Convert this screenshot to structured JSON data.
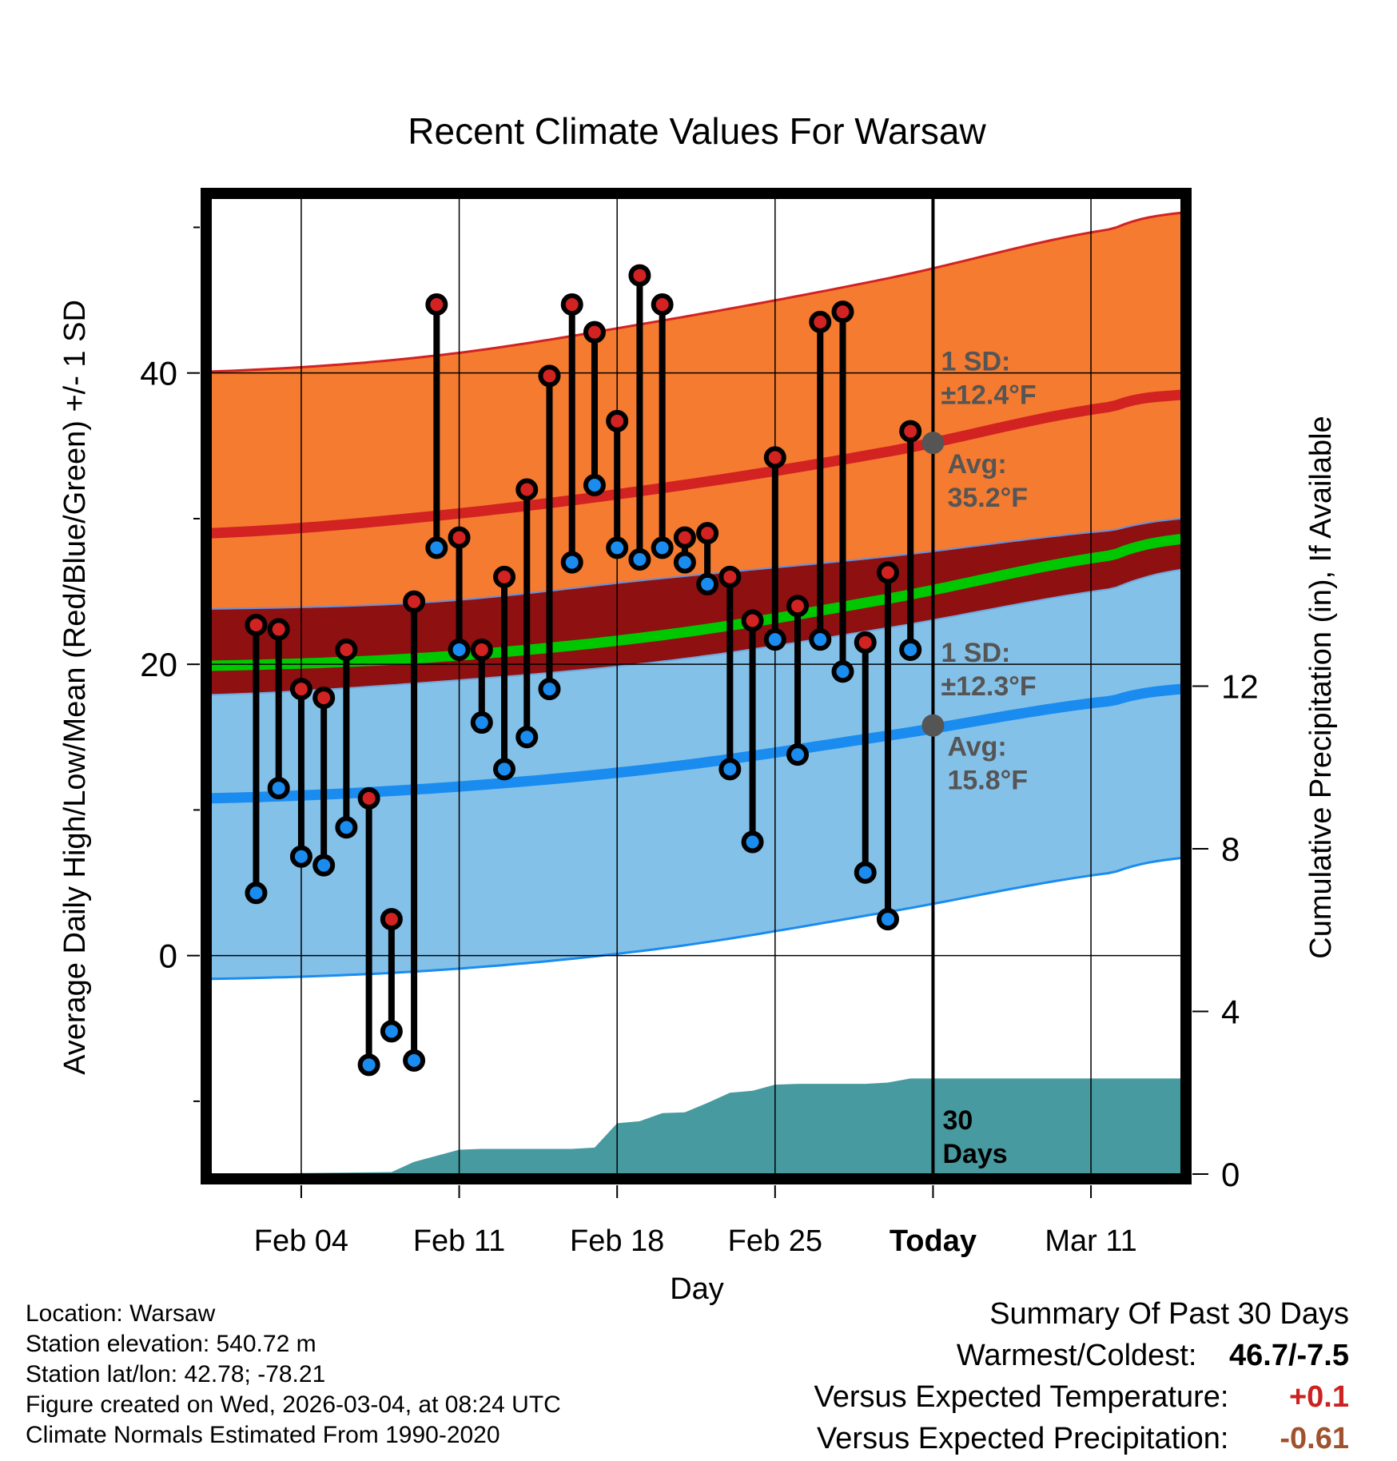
{
  "chart_data": {
    "type": "line",
    "title": "Recent Climate Values For Warsaw",
    "xlabel": "Day",
    "ylabel": "Average Daily High/Low/Mean (Red/Blue/Green) +/- 1 SD",
    "y2label": "Cumulative Precipitation (in), If Available",
    "xlim": [
      0,
      43
    ],
    "ylim": [
      -15,
      52
    ],
    "y2lim": [
      0,
      24
    ],
    "y_ticks": [
      0,
      20,
      40
    ],
    "y2_ticks": [
      0,
      4,
      8,
      12
    ],
    "x_tick_positions": [
      4,
      11,
      18,
      25,
      32,
      39
    ],
    "x_tick_labels": [
      "Feb 04",
      "Feb 11",
      "Feb 18",
      "Feb 25",
      "Today",
      "Mar 11"
    ],
    "today_x": 32,
    "days": [
      2,
      3,
      4,
      5,
      6,
      7,
      8,
      9,
      10,
      11,
      12,
      13,
      14,
      15,
      16,
      17,
      18,
      19,
      20,
      21,
      22,
      23,
      24,
      25,
      26,
      27,
      28,
      29,
      30,
      31
    ],
    "observed_high": [
      22.7,
      22.4,
      18.3,
      17.7,
      21.0,
      10.8,
      2.5,
      24.3,
      44.7,
      28.7,
      21.0,
      26.0,
      32.0,
      39.8,
      44.7,
      42.8,
      36.7,
      46.7,
      44.7,
      28.7,
      29.0,
      26.0,
      23.0,
      34.2,
      24.0,
      43.5,
      44.2,
      21.5,
      26.3,
      36.0
    ],
    "observed_low": [
      4.3,
      11.5,
      6.8,
      6.2,
      8.8,
      -7.5,
      -5.2,
      -7.2,
      28.0,
      21.0,
      16.0,
      12.8,
      15.0,
      18.3,
      27.0,
      32.3,
      28.0,
      27.2,
      28.0,
      27.0,
      25.5,
      12.8,
      7.8,
      21.7,
      13.8,
      21.7,
      19.5,
      5.7,
      2.5,
      21.0
    ],
    "normal_x": [
      0,
      10,
      20,
      30,
      40,
      43
    ],
    "normal_high_mean": [
      29.0,
      30.2,
      32.1,
      34.6,
      37.7,
      38.5
    ],
    "normal_high_upper": [
      40.1,
      41.2,
      43.6,
      46.5,
      49.9,
      51.0
    ],
    "normal_high_lower": [
      23.8,
      24.3,
      25.9,
      27.4,
      29.2,
      30.0
    ],
    "normal_mean_line": [
      19.9,
      20.5,
      22.0,
      24.5,
      27.5,
      28.6
    ],
    "normal_low_mean": [
      10.8,
      11.5,
      12.9,
      15.1,
      17.5,
      18.3
    ],
    "normal_low_upper": [
      17.9,
      18.8,
      20.2,
      22.5,
      25.2,
      26.5
    ],
    "normal_low_lower": [
      -1.6,
      -1.0,
      0.5,
      3.0,
      5.7,
      6.7
    ],
    "precip_x": [
      0,
      8,
      9,
      10,
      11,
      12,
      13,
      14,
      15,
      16,
      17,
      18,
      19,
      20,
      21,
      22,
      23,
      24,
      25,
      26,
      27,
      28,
      29,
      30,
      31,
      43
    ],
    "precip_cumulative": [
      0,
      0.05,
      0.3,
      0.45,
      0.6,
      0.62,
      0.62,
      0.62,
      0.62,
      0.62,
      0.65,
      1.25,
      1.3,
      1.5,
      1.52,
      1.75,
      2.0,
      2.05,
      2.2,
      2.22,
      2.22,
      2.22,
      2.22,
      2.25,
      2.35,
      2.35
    ],
    "annotations": {
      "high_sd": [
        "1 SD:",
        "±12.4°F"
      ],
      "high_avg": [
        "Avg:",
        "35.2°F"
      ],
      "low_sd": [
        "1 SD:",
        "±12.3°F"
      ],
      "low_avg": [
        "Avg:",
        "15.8°F"
      ],
      "precip_days": [
        "30",
        "Days"
      ]
    },
    "today_high_avg": 35.2,
    "today_low_avg": 15.8
  },
  "info": {
    "location": "Location: Warsaw",
    "elevation": "Station elevation: 540.72 m",
    "latlon": "Station lat/lon: 42.78; -78.21",
    "created": "Figure created on Wed, 2026-03-04, at 08:24 UTC",
    "normals": "Climate Normals Estimated From 1990-2020"
  },
  "summary": {
    "title": "Summary Of Past 30 Days",
    "warmest_label": "Warmest/Coldest:",
    "warmest_value": "46.7/-7.5",
    "temp_label": "Versus Expected Temperature:",
    "temp_value": "+0.1",
    "precip_label": "Versus Expected Precipitation:",
    "precip_value": "-0.61"
  },
  "colors": {
    "orange_band": "#f47b30",
    "dark_red_band": "#8e1010",
    "light_blue_band": "#84c1e8",
    "high_line": "#d22222",
    "low_line": "#1a8cf0",
    "mean_line": "#00c800",
    "precip_fill": "#479a9f",
    "annotation_gray": "#555555",
    "temp_value": "#cc2222",
    "precip_value": "#a0522d"
  }
}
